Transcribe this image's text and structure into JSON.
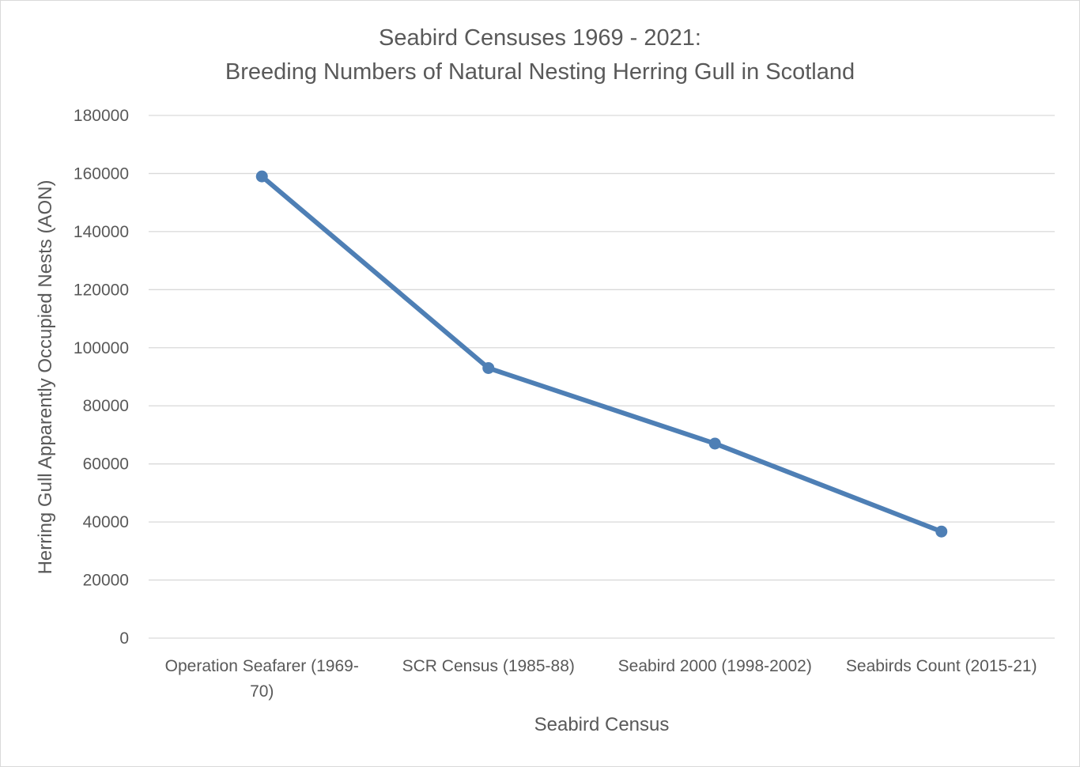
{
  "chart_data": {
    "type": "line",
    "title_lines": [
      "Seabird Censuses 1969 - 2021:",
      "Breeding Numbers of Natural Nesting Herring Gull in Scotland"
    ],
    "xlabel": "Seabird Census",
    "ylabel": "Herring Gull Apparently Occupied Nests (AON)",
    "categories": [
      "Operation Seafarer (1969-70)",
      "SCR Census (1985-88)",
      "Seabird 2000 (1998-2002)",
      "Seabirds Count (2015-21)"
    ],
    "category_label_lines": [
      [
        "Operation Seafarer (1969-",
        "70)"
      ],
      [
        "SCR Census (1985-88)"
      ],
      [
        "Seabird 2000 (1998-2002)"
      ],
      [
        "Seabirds Count (2015-21)"
      ]
    ],
    "series": [
      {
        "values": [
          159000,
          93000,
          67000,
          36700
        ]
      }
    ],
    "ylim": [
      0,
      180000
    ],
    "yticks": [
      0,
      20000,
      40000,
      60000,
      80000,
      100000,
      120000,
      140000,
      160000,
      180000
    ],
    "ytick_labels": [
      "0",
      "20000",
      "40000",
      "60000",
      "80000",
      "100000",
      "120000",
      "140000",
      "160000",
      "180000"
    ],
    "grid": true,
    "legend": "none",
    "line_color": "#4e7fb5",
    "grid_color": "#d9d9d9",
    "text_color": "#595959"
  }
}
